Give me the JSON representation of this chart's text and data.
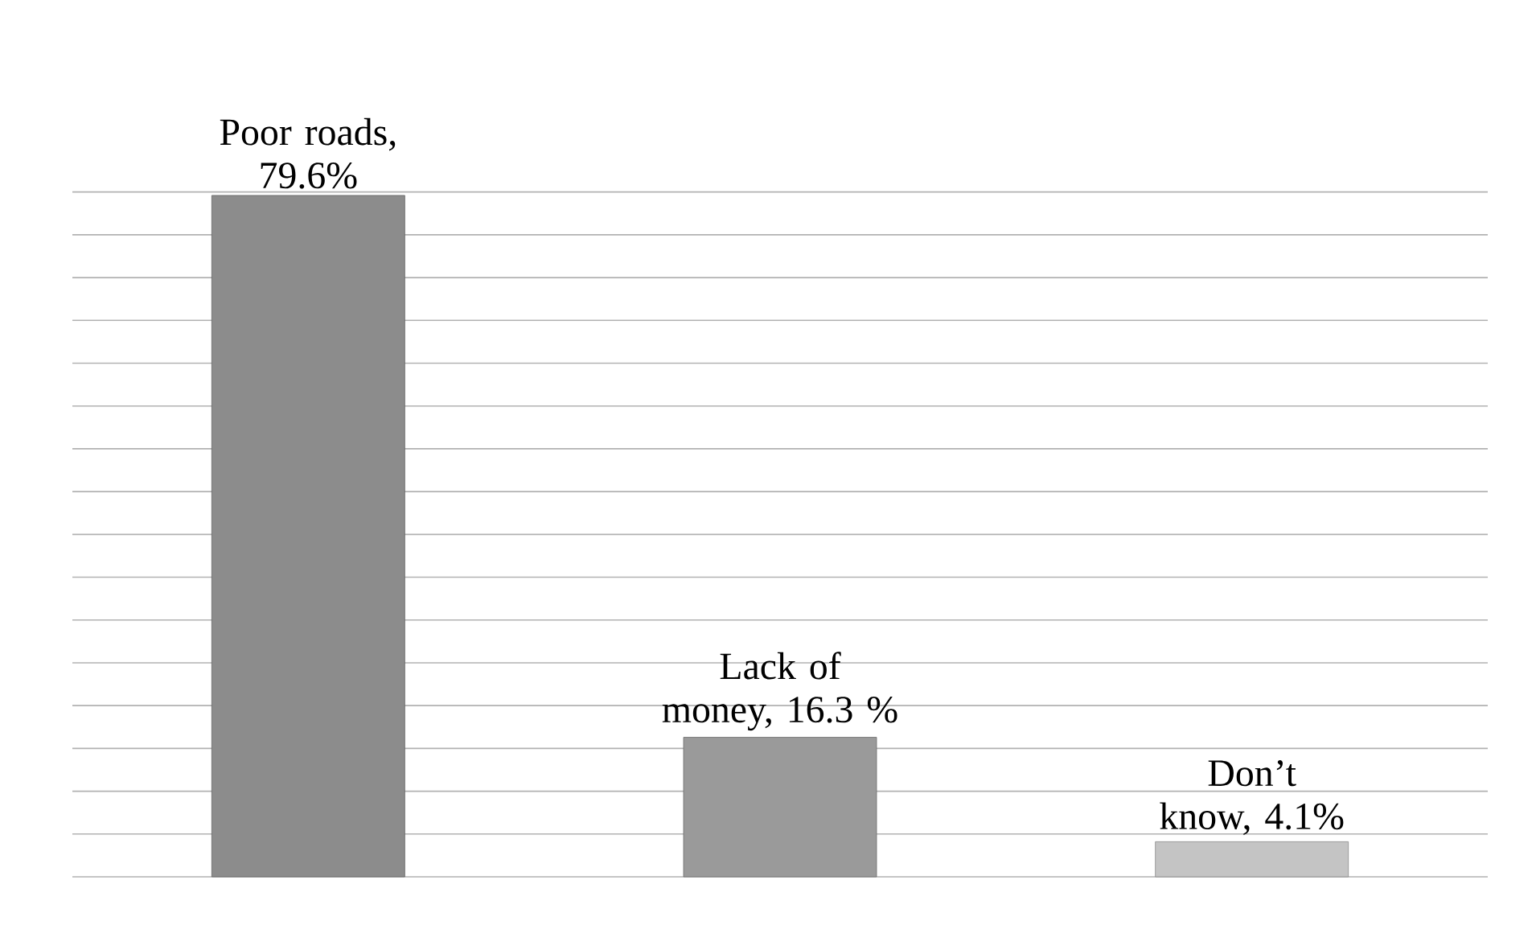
{
  "chart_data": {
    "type": "bar",
    "categories": [
      null,
      null,
      null
    ],
    "values": [
      79.6,
      16.3,
      4.1
    ],
    "colors": [
      "#8c8c8c",
      "#9a9a9a",
      "#c4c4c4"
    ],
    "value_labels": [
      "Poor roads, 79.6%",
      "Lack of money, 16.3 %",
      "Don’t know, 4.1%"
    ],
    "tick_labels": false,
    "grid": "y"
  }
}
